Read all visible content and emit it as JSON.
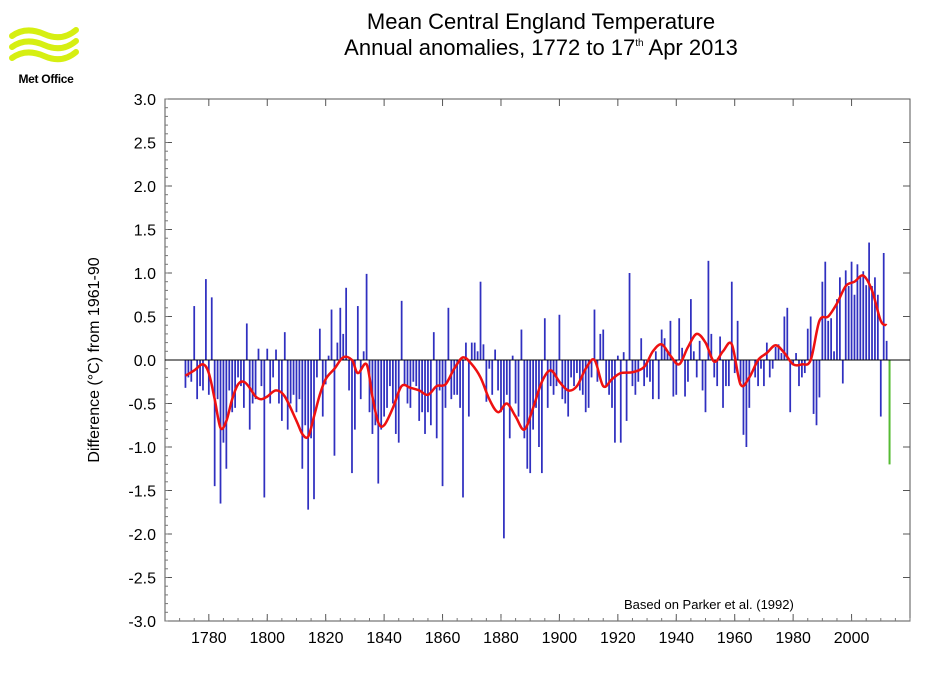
{
  "logo": {
    "text": "Met Office",
    "stripe_color": "#d6ef12"
  },
  "chart_data": {
    "type": "bar",
    "title_line1": "Mean Central England Temperature",
    "title_line2_prefix": "Annual anomalies, 1772 to 17",
    "title_superscript": "th",
    "title_line2_suffix": " Apr 2013",
    "ylabel": "Difference (°C) from 1961-90",
    "xlabel": "",
    "ylim": [
      -3.0,
      3.0
    ],
    "xlim": [
      1765,
      2020
    ],
    "yticks": [
      "3.0",
      "2.5",
      "2.0",
      "1.5",
      "1.0",
      "0.5",
      "0.0",
      "-0.5",
      "-1.0",
      "-1.5",
      "-2.0",
      "-2.5",
      "-3.0"
    ],
    "xticks": [
      "1780",
      "1800",
      "1820",
      "1840",
      "1860",
      "1880",
      "1900",
      "1920",
      "1940",
      "1960",
      "1980",
      "2000"
    ],
    "annotation": "Based on Parker et al. (1992)",
    "colors": {
      "bars": "#3030c0",
      "smooth": "#ee1111",
      "partial_year": "#55bb33",
      "zero_line": "#000000"
    },
    "series": [
      {
        "kind": "annual anomaly bars",
        "x": [
          1772,
          1773,
          1774,
          1775,
          1776,
          1777,
          1778,
          1779,
          1780,
          1781,
          1782,
          1783,
          1784,
          1785,
          1786,
          1787,
          1788,
          1789,
          1790,
          1791,
          1792,
          1793,
          1794,
          1795,
          1796,
          1797,
          1798,
          1799,
          1800,
          1801,
          1802,
          1803,
          1804,
          1805,
          1806,
          1807,
          1808,
          1809,
          1810,
          1811,
          1812,
          1813,
          1814,
          1815,
          1816,
          1817,
          1818,
          1819,
          1820,
          1821,
          1822,
          1823,
          1824,
          1825,
          1826,
          1827,
          1828,
          1829,
          1830,
          1831,
          1832,
          1833,
          1834,
          1835,
          1836,
          1837,
          1838,
          1839,
          1840,
          1841,
          1842,
          1843,
          1844,
          1845,
          1846,
          1847,
          1848,
          1849,
          1850,
          1851,
          1852,
          1853,
          1854,
          1855,
          1856,
          1857,
          1858,
          1859,
          1860,
          1861,
          1862,
          1863,
          1864,
          1865,
          1866,
          1867,
          1868,
          1869,
          1870,
          1871,
          1872,
          1873,
          1874,
          1875,
          1876,
          1877,
          1878,
          1879,
          1880,
          1881,
          1882,
          1883,
          1884,
          1885,
          1886,
          1887,
          1888,
          1889,
          1890,
          1891,
          1892,
          1893,
          1894,
          1895,
          1896,
          1897,
          1898,
          1899,
          1900,
          1901,
          1902,
          1903,
          1904,
          1905,
          1906,
          1907,
          1908,
          1909,
          1910,
          1911,
          1912,
          1913,
          1914,
          1915,
          1916,
          1917,
          1918,
          1919,
          1920,
          1921,
          1922,
          1923,
          1924,
          1925,
          1926,
          1927,
          1928,
          1929,
          1930,
          1931,
          1932,
          1933,
          1934,
          1935,
          1936,
          1937,
          1938,
          1939,
          1940,
          1941,
          1942,
          1943,
          1944,
          1945,
          1946,
          1947,
          1948,
          1949,
          1950,
          1951,
          1952,
          1953,
          1954,
          1955,
          1956,
          1957,
          1958,
          1959,
          1960,
          1961,
          1962,
          1963,
          1964,
          1965,
          1966,
          1967,
          1968,
          1969,
          1970,
          1971,
          1972,
          1973,
          1974,
          1975,
          1976,
          1977,
          1978,
          1979,
          1980,
          1981,
          1982,
          1983,
          1984,
          1985,
          1986,
          1987,
          1988,
          1989,
          1990,
          1991,
          1992,
          1993,
          1994,
          1995,
          1996,
          1997,
          1998,
          1999,
          2000,
          2001,
          2002,
          2003,
          2004,
          2005,
          2006,
          2007,
          2008,
          2009,
          2010,
          2011,
          2012
        ],
        "values": [
          -0.32,
          -0.2,
          -0.25,
          0.62,
          -0.45,
          -0.3,
          -0.35,
          0.93,
          -0.4,
          0.72,
          -1.45,
          -0.45,
          -1.65,
          -0.95,
          -1.25,
          -0.35,
          -0.6,
          -0.55,
          -0.2,
          -0.3,
          -0.55,
          0.42,
          -0.8,
          -0.5,
          -0.45,
          0.13,
          -0.3,
          -1.58,
          0.13,
          -0.5,
          -0.2,
          0.12,
          -0.5,
          -0.7,
          0.32,
          -0.8,
          -0.5,
          -0.4,
          -0.6,
          -0.45,
          -1.25,
          -0.75,
          -1.72,
          -0.9,
          -1.6,
          -0.2,
          0.36,
          -0.65,
          -0.28,
          0.05,
          0.58,
          -1.1,
          0.2,
          0.6,
          0.3,
          0.83,
          -0.35,
          -1.3,
          -0.8,
          0.62,
          -0.45,
          0.1,
          0.99,
          -0.6,
          -0.85,
          -0.75,
          -1.42,
          -0.8,
          -0.65,
          -0.55,
          -0.3,
          -0.5,
          -0.85,
          -0.95,
          0.68,
          -0.3,
          -0.5,
          -0.55,
          -0.25,
          -0.3,
          -0.7,
          -0.6,
          -0.85,
          -0.6,
          -0.75,
          0.32,
          -0.9,
          -0.35,
          -1.45,
          -0.55,
          0.6,
          -0.45,
          -0.4,
          -0.4,
          -0.55,
          -1.58,
          0.2,
          -0.65,
          0.2,
          0.2,
          0.1,
          0.9,
          0.18,
          -0.48,
          -0.1,
          -0.4,
          0.12,
          -0.35,
          -0.6,
          -2.05,
          -0.4,
          -0.9,
          0.05,
          -0.5,
          -0.65,
          0.35,
          -0.9,
          -1.25,
          -1.3,
          -0.8,
          -0.55,
          -1.0,
          -1.3,
          0.48,
          -0.55,
          -0.3,
          -0.4,
          -0.3,
          0.52,
          -0.45,
          -0.5,
          -0.65,
          -0.2,
          -0.3,
          -0.15,
          -0.35,
          -0.4,
          -0.6,
          -0.55,
          -0.2,
          0.58,
          -0.25,
          0.3,
          0.35,
          -0.3,
          -0.4,
          -0.55,
          -0.95,
          0.05,
          -0.95,
          0.09,
          -0.7,
          1.0,
          -0.3,
          -0.4,
          -0.25,
          0.25,
          -0.3,
          -0.2,
          -0.25,
          -0.45,
          0.1,
          -0.45,
          0.35,
          0.25,
          0.1,
          0.45,
          -0.42,
          -0.4,
          0.48,
          0.14,
          -0.42,
          -0.25,
          0.7,
          0.1,
          -0.2,
          0.22,
          -0.35,
          -0.6,
          1.14,
          0.3,
          -0.2,
          -0.3,
          0.27,
          -0.55,
          -0.3,
          -0.3,
          0.9,
          -0.15,
          0.45,
          -0.25,
          -0.86,
          -1.0,
          -0.55,
          0.0,
          -0.2,
          -0.3,
          -0.1,
          -0.3,
          0.2,
          -0.2,
          -0.1,
          0.15,
          0.18,
          0.08,
          0.5,
          0.6,
          -0.6,
          -0.05,
          0.08,
          -0.3,
          -0.2,
          -0.15,
          0.36,
          0.5,
          -0.62,
          -0.75,
          -0.43,
          0.9,
          1.13,
          0.45,
          0.48,
          0.1,
          0.7,
          0.95,
          -0.27,
          1.03,
          0.85,
          1.13,
          0.75,
          1.1,
          0.97,
          1.02,
          0.86,
          1.35,
          0.85,
          0.95,
          0.75,
          -0.65,
          1.23,
          0.22
        ]
      },
      {
        "kind": "partial year 2013",
        "x": [
          2013
        ],
        "values": [
          -1.2
        ]
      },
      {
        "kind": "smoothed curve",
        "x": [
          1772,
          1775,
          1778,
          1780,
          1782,
          1784,
          1786,
          1788,
          1790,
          1792,
          1794,
          1796,
          1798,
          1800,
          1803,
          1806,
          1810,
          1812,
          1814,
          1816,
          1818,
          1820,
          1823,
          1826,
          1829,
          1831,
          1834,
          1836,
          1838,
          1840,
          1843,
          1846,
          1849,
          1852,
          1855,
          1858,
          1861,
          1864,
          1867,
          1870,
          1873,
          1876,
          1879,
          1882,
          1885,
          1888,
          1891,
          1894,
          1897,
          1900,
          1903,
          1906,
          1909,
          1912,
          1915,
          1918,
          1921,
          1925,
          1929,
          1932,
          1935,
          1938,
          1941,
          1944,
          1947,
          1950,
          1953,
          1956,
          1959,
          1962,
          1965,
          1968,
          1971,
          1974,
          1977,
          1980,
          1983,
          1986,
          1989,
          1992,
          1995,
          1998,
          2001,
          2004,
          2007,
          2010,
          2012
        ],
        "values": [
          -0.18,
          -0.12,
          -0.05,
          -0.15,
          -0.45,
          -0.78,
          -0.7,
          -0.45,
          -0.28,
          -0.25,
          -0.32,
          -0.42,
          -0.45,
          -0.42,
          -0.35,
          -0.42,
          -0.7,
          -0.85,
          -0.88,
          -0.65,
          -0.4,
          -0.22,
          -0.1,
          0.03,
          0.0,
          -0.15,
          -0.05,
          -0.42,
          -0.72,
          -0.75,
          -0.55,
          -0.3,
          -0.32,
          -0.35,
          -0.4,
          -0.3,
          -0.28,
          -0.1,
          0.03,
          -0.05,
          -0.2,
          -0.45,
          -0.6,
          -0.5,
          -0.65,
          -0.8,
          -0.55,
          -0.25,
          -0.12,
          -0.25,
          -0.35,
          -0.3,
          -0.1,
          0.0,
          -0.3,
          -0.22,
          -0.15,
          -0.14,
          -0.08,
          0.1,
          0.18,
          0.05,
          -0.05,
          0.15,
          0.3,
          0.2,
          -0.02,
          0.1,
          0.18,
          -0.28,
          -0.2,
          0.0,
          0.08,
          0.17,
          0.08,
          -0.05,
          -0.05,
          0.0,
          0.45,
          0.5,
          0.65,
          0.85,
          0.9,
          0.97,
          0.8,
          0.45,
          0.4
        ]
      }
    ]
  }
}
